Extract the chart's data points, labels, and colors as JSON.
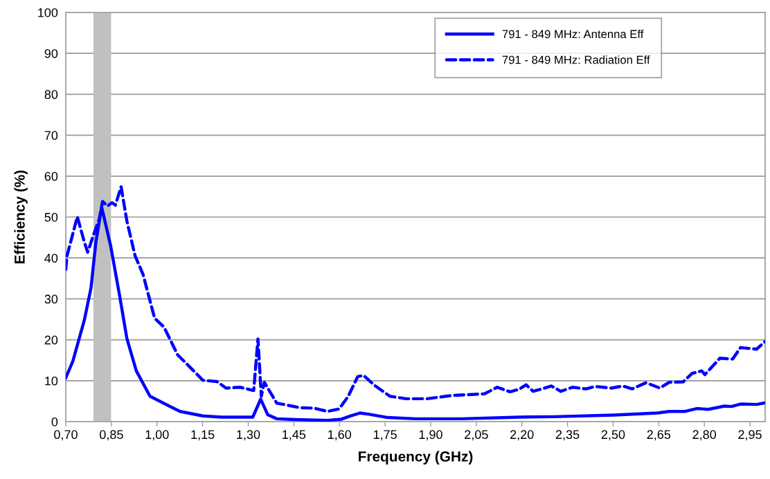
{
  "chart_data": {
    "type": "line",
    "xlabel": "Frequency (GHz)",
    "ylabel": "Efficiency (%)",
    "xlim": [
      0.7,
      3.0
    ],
    "ylim": [
      0,
      100
    ],
    "xticks": [
      {
        "value": 0.7,
        "label": "0,70"
      },
      {
        "value": 0.85,
        "label": "0,85"
      },
      {
        "value": 1.0,
        "label": "1,00"
      },
      {
        "value": 1.15,
        "label": "1,15"
      },
      {
        "value": 1.3,
        "label": "1,30"
      },
      {
        "value": 1.45,
        "label": "1,45"
      },
      {
        "value": 1.6,
        "label": "1,60"
      },
      {
        "value": 1.75,
        "label": "1,75"
      },
      {
        "value": 1.9,
        "label": "1,90"
      },
      {
        "value": 2.05,
        "label": "2,05"
      },
      {
        "value": 2.2,
        "label": "2,20"
      },
      {
        "value": 2.35,
        "label": "2,35"
      },
      {
        "value": 2.5,
        "label": "2,50"
      },
      {
        "value": 2.65,
        "label": "2,65"
      },
      {
        "value": 2.8,
        "label": "2,80"
      },
      {
        "value": 2.95,
        "label": "2,95"
      }
    ],
    "yticks": [
      0,
      10,
      20,
      30,
      40,
      50,
      60,
      70,
      80,
      90,
      100
    ],
    "grid": "y",
    "legend": "top right",
    "marker": "none",
    "bands": [
      {
        "axis": "x",
        "from": 0.791,
        "to": 0.849,
        "color": "#c0c0c0"
      }
    ],
    "series": [
      {
        "name": "791 - 849 MHz: Antenna Eff",
        "color": "#0000ff",
        "line_style": "solid",
        "x": [
          0.7,
          0.723,
          0.761,
          0.783,
          0.799,
          0.818,
          0.848,
          0.878,
          0.901,
          0.932,
          0.977,
          1.038,
          1.076,
          1.151,
          1.212,
          1.315,
          1.341,
          1.364,
          1.394,
          1.455,
          1.561,
          1.607,
          1.637,
          1.667,
          1.698,
          1.759,
          1.85,
          2.001,
          2.191,
          2.305,
          2.502,
          2.646,
          2.684,
          2.737,
          2.775,
          2.813,
          2.866,
          2.889,
          2.919,
          2.972,
          3.0
        ],
        "values": [
          10.7,
          14.7,
          24.8,
          32.7,
          43.9,
          52.4,
          42.8,
          30.4,
          20.3,
          12.4,
          6.2,
          3.9,
          2.5,
          1.4,
          1.1,
          1.1,
          5.5,
          1.7,
          0.7,
          0.5,
          0.3,
          0.6,
          1.4,
          2.1,
          1.8,
          1.0,
          0.7,
          0.7,
          1.1,
          1.2,
          1.6,
          2.1,
          2.5,
          2.5,
          3.2,
          3.0,
          3.8,
          3.7,
          4.3,
          4.2,
          4.6
        ]
      },
      {
        "name": "791 - 849 MHz: Radiation Eff",
        "color": "#0000ff",
        "line_style": "dashed",
        "x": [
          0.7,
          0.704,
          0.738,
          0.761,
          0.772,
          0.791,
          0.81,
          0.821,
          0.837,
          0.852,
          0.863,
          0.882,
          0.901,
          0.928,
          0.954,
          0.992,
          1.023,
          1.068,
          1.106,
          1.151,
          1.197,
          1.227,
          1.273,
          1.318,
          1.332,
          1.343,
          1.353,
          1.394,
          1.417,
          1.47,
          1.516,
          1.561,
          1.599,
          1.629,
          1.66,
          1.679,
          1.713,
          1.766,
          1.819,
          1.888,
          1.971,
          2.077,
          2.119,
          2.161,
          2.191,
          2.214,
          2.237,
          2.275,
          2.297,
          2.328,
          2.366,
          2.411,
          2.441,
          2.494,
          2.532,
          2.563,
          2.608,
          2.654,
          2.684,
          2.73,
          2.76,
          2.791,
          2.802,
          2.851,
          2.893,
          2.919,
          2.972,
          3.0
        ],
        "values": [
          37.2,
          40.5,
          50.1,
          43.9,
          41.4,
          45.6,
          49.5,
          53.8,
          52.7,
          53.5,
          52.9,
          57.4,
          49.0,
          40.5,
          36.0,
          25.3,
          23.1,
          16.3,
          13.5,
          10.1,
          9.8,
          8.2,
          8.4,
          7.6,
          20.2,
          6.2,
          9.6,
          4.5,
          4.2,
          3.4,
          3.3,
          2.5,
          3.1,
          6.2,
          11.0,
          11.3,
          9.0,
          6.2,
          5.6,
          5.6,
          6.4,
          6.8,
          8.4,
          7.3,
          7.9,
          9.0,
          7.4,
          8.2,
          8.7,
          7.4,
          8.4,
          8.0,
          8.6,
          8.2,
          8.7,
          8.0,
          9.5,
          8.2,
          9.6,
          9.7,
          11.8,
          12.4,
          11.5,
          15.5,
          15.3,
          18.1,
          17.7,
          19.6
        ]
      }
    ]
  }
}
